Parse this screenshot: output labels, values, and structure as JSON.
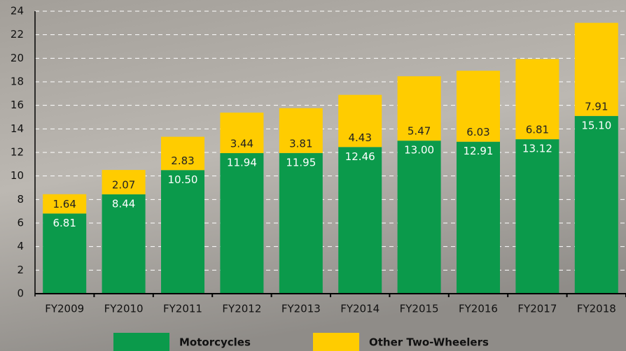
{
  "chart_data": {
    "type": "stacked_bar",
    "categories": [
      "FY2009",
      "FY2010",
      "FY2011",
      "FY2012",
      "FY2013",
      "FY2014",
      "FY2015",
      "FY2016",
      "FY2017",
      "FY2018"
    ],
    "series": [
      {
        "name": "Motorcycles",
        "color": "#0b9a4b",
        "values": [
          6.81,
          8.44,
          10.5,
          11.94,
          11.95,
          12.46,
          13.0,
          12.91,
          13.12,
          15.1
        ],
        "value_labels": [
          "6.81",
          "8.44",
          "10.50",
          "11.94",
          "11.95",
          "12.46",
          "13.00",
          "12.91",
          "13.12",
          "15.10"
        ]
      },
      {
        "name": "Other Two-Wheelers",
        "color": "#ffcc00",
        "values": [
          1.64,
          2.07,
          2.83,
          3.44,
          3.81,
          4.43,
          5.47,
          6.03,
          6.81,
          7.91
        ],
        "value_labels": [
          "1.64",
          "2.07",
          "2.83",
          "3.44",
          "3.81",
          "4.43",
          "5.47",
          "6.03",
          "6.81",
          "7.91"
        ]
      }
    ],
    "ylim": [
      0,
      24
    ],
    "yticks": [
      0,
      2,
      4,
      6,
      8,
      10,
      12,
      14,
      16,
      18,
      20,
      22,
      24
    ],
    "grid": true
  }
}
